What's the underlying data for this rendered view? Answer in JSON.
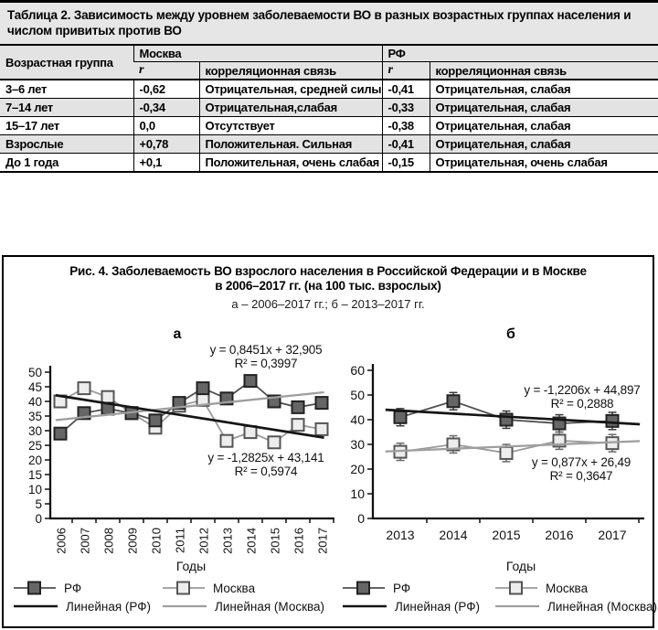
{
  "table": {
    "title": "Таблица 2. Зависимость между уровнем заболеваемости ВО в разных возрастных группах населения и числом привитых против ВО",
    "headers": {
      "age_group": "Возрастная группа",
      "moscow": "Москва",
      "rf": "РФ",
      "r": "r",
      "correlation": "корреляционная связь"
    },
    "rows": [
      [
        "3–6 лет",
        "-0,62",
        "Отрицательная, средней силы",
        "-0,41",
        "Отрицательная, слабая"
      ],
      [
        "7–14 лет",
        "-0,34",
        "Отрицательная,слабая",
        "-0,33",
        "Отрицательная, слабая"
      ],
      [
        "15–17 лет",
        "0,0",
        "Отсутствует",
        "-0,38",
        "Отрицательная, слабая"
      ],
      [
        "Взрослые",
        "+0,78",
        "Положительная. Сильная",
        "-0,41",
        "Отрицательная, слабая"
      ],
      [
        "До 1 года",
        "+0,1",
        "Положительная, очень слабая",
        "-0,15",
        "Отрицательная, очень слабая"
      ]
    ]
  },
  "figure": {
    "title_line1": "Рис. 4. Заболеваемость ВО взрослого населения в Российской Федерации и в Москве",
    "title_line2": "в 2006–2017 гг. (на 100 тыс. взрослых)",
    "subtitle": "а – 2006–2017 гг.; б – 2013–2017 гг.",
    "panel_a_label": "а",
    "panel_b_label": "б",
    "legend": {
      "rf": "РФ",
      "moscow": "Москва",
      "linear_rf": "Линейная (РФ)",
      "linear_moscow": "Линейная (Москва)"
    }
  },
  "chart_data": [
    {
      "type": "line",
      "panel": "а",
      "x": [
        2006,
        2007,
        2008,
        2009,
        2010,
        2011,
        2012,
        2013,
        2014,
        2015,
        2016,
        2017
      ],
      "xlabel": "Годы",
      "ylim": [
        0,
        50
      ],
      "ytick_step": 5,
      "legend_position": "bottom",
      "series": [
        {
          "name": "РФ",
          "values": [
            29,
            36,
            37.5,
            36,
            33.5,
            39.5,
            44.5,
            41,
            47,
            40,
            38,
            39.5
          ],
          "marker_fill": "#666666",
          "marker_stroke": "#222222",
          "line_color": "#4f4f4f"
        },
        {
          "name": "Москва",
          "values": [
            40,
            44.5,
            41.5,
            36,
            31,
            38.5,
            40.5,
            26.5,
            29.5,
            26,
            32,
            30.5
          ],
          "marker_fill": "#ededed",
          "marker_stroke": "#555555",
          "line_color": "#9a9a9a"
        }
      ],
      "trendlines": [
        {
          "series": "РФ",
          "equation": "y = 0,8451x + 32,905",
          "r2": "R² = 0,3997",
          "slope": 0.8451,
          "intercept": 32.905,
          "color": "#9e9e9e",
          "width": 2.3
        },
        {
          "series": "Москва",
          "equation": "y = -1,2825x + 43,141",
          "r2": "R² = 0,5974",
          "slope": -1.2825,
          "intercept": 43.141,
          "color": "#151515",
          "width": 2.7
        }
      ]
    },
    {
      "type": "line",
      "panel": "б",
      "x": [
        2013,
        2014,
        2015,
        2016,
        2017
      ],
      "xlabel": "Годы",
      "ylim": [
        0,
        60
      ],
      "ytick_step": 10,
      "legend_position": "bottom",
      "series": [
        {
          "name": "РФ",
          "values": [
            41,
            47.5,
            40,
            38.5,
            39.5
          ],
          "error_bar": 3.5,
          "marker_fill": "#666666",
          "marker_stroke": "#222222",
          "line_color": "#4f4f4f"
        },
        {
          "name": "Москва",
          "values": [
            27,
            30,
            26.5,
            31.5,
            30.5
          ],
          "error_bar": 3.5,
          "marker_fill": "#ededed",
          "marker_stroke": "#555555",
          "line_color": "#9a9a9a"
        }
      ],
      "trendlines": [
        {
          "series": "РФ",
          "equation": "y = -1,2206x + 44,897",
          "r2": "R² = 0,2888",
          "slope": -1.2206,
          "intercept": 44.897,
          "color": "#151515",
          "width": 2.7
        },
        {
          "series": "Москва",
          "equation": "y = 0,877x + 26,49",
          "r2": "R² = 0,3647",
          "slope": 0.877,
          "intercept": 26.49,
          "color": "#9e9e9e",
          "width": 2.3
        }
      ]
    }
  ]
}
